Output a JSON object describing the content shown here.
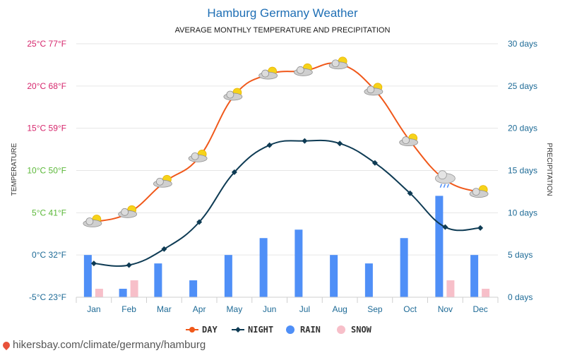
{
  "colors": {
    "day": "#f0581a",
    "night": "#0e3b54",
    "rain": "#4f8ff7",
    "snow": "#f7bfc9",
    "temp_tick": "#d6266c",
    "right_tick": "#1d6a96",
    "month_tick": "#1d6a96",
    "grid": "#e6e6e6"
  },
  "footer": {
    "text": "hikersbay.com/climate/germany/hamburg"
  },
  "chart_data": {
    "type": "line+bar",
    "title": "Hamburg Germany Weather",
    "subtitle": "AVERAGE MONTHLY TEMPERATURE AND PRECIPITATION",
    "categories": [
      "Jan",
      "Feb",
      "Mar",
      "Apr",
      "May",
      "Jun",
      "Jul",
      "Aug",
      "Sep",
      "Oct",
      "Nov",
      "Dec"
    ],
    "left_axis": {
      "label": "TEMPERATURE",
      "unit": "°C",
      "ylim": [
        -5,
        25
      ],
      "ticks": [
        {
          "value": 25,
          "label": "25°C 77°F"
        },
        {
          "value": 20,
          "label": "20°C 68°F"
        },
        {
          "value": 15,
          "label": "15°C 59°F"
        },
        {
          "value": 10,
          "label": "10°C 50°F"
        },
        {
          "value": 5,
          "label": "5°C 41°F"
        },
        {
          "value": 0,
          "label": "0°C 32°F"
        },
        {
          "value": -5,
          "label": "-5°C 23°F"
        }
      ]
    },
    "right_axis": {
      "label": "PRECIPITATION",
      "unit": "days",
      "ylim": [
        0,
        30
      ],
      "ticks": [
        {
          "value": 30,
          "label": "30 days"
        },
        {
          "value": 25,
          "label": "25 days"
        },
        {
          "value": 20,
          "label": "20 days"
        },
        {
          "value": 15,
          "label": "15 days"
        },
        {
          "value": 10,
          "label": "10 days"
        },
        {
          "value": 5,
          "label": "5 days"
        },
        {
          "value": 0,
          "label": "0 days"
        }
      ]
    },
    "series": [
      {
        "name": "DAY",
        "kind": "line",
        "axis": "left",
        "values": [
          3.9,
          5.0,
          8.6,
          11.6,
          18.9,
          21.4,
          21.8,
          22.6,
          19.5,
          13.5,
          8.9,
          7.4
        ],
        "weather_icons": [
          "partly-cloudy-icon",
          "partly-cloudy-icon",
          "partly-cloudy-icon",
          "partly-cloudy-icon",
          "partly-cloudy-icon",
          "partly-cloudy-icon",
          "partly-cloudy-icon",
          "partly-cloudy-icon",
          "partly-cloudy-icon",
          "partly-cloudy-icon",
          "rain-cloud-icon",
          "partly-cloudy-icon"
        ]
      },
      {
        "name": "NIGHT",
        "kind": "line",
        "axis": "left",
        "values": [
          -1.0,
          -1.2,
          0.7,
          3.9,
          9.8,
          13.0,
          13.5,
          13.2,
          10.9,
          7.3,
          3.3,
          3.2
        ]
      },
      {
        "name": "RAIN",
        "kind": "bar",
        "axis": "right",
        "values": [
          5,
          1,
          4,
          2,
          5,
          7,
          8,
          5,
          4,
          7,
          12,
          5
        ]
      },
      {
        "name": "SNOW",
        "kind": "bar",
        "axis": "right",
        "values": [
          1,
          2,
          0,
          0,
          0,
          0,
          0,
          0,
          0,
          0,
          2,
          1
        ]
      }
    ],
    "legend": [
      "DAY",
      "NIGHT",
      "RAIN",
      "SNOW"
    ],
    "legend_position": "bottom-center",
    "grid": true
  }
}
